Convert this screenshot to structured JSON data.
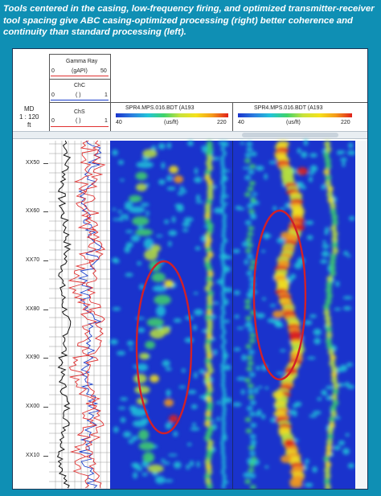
{
  "caption": "Tools centered in the casing, low-frequency firing, and optimized transmitter-receiver tool spacing give ABC casing-optimized processing (right) better coherence and continuity than standard processing (left).",
  "colors": {
    "background": "#0f8fb4",
    "gamma_curve": "#e03030",
    "chc_curve": "#1a3fcc",
    "chs_curve": "#e03030",
    "highlight_ellipse": "#d0202a",
    "image_base": "#1a33cc"
  },
  "header": {
    "md_label": "MD",
    "scale_label": "1 : 120",
    "unit_label": "ft",
    "gamma": {
      "name": "Gamma Ray",
      "unit": "(gAPI)",
      "min": "0",
      "max": "50"
    },
    "chc": {
      "name": "ChC",
      "unit": "( )",
      "min": "0",
      "max": "1"
    },
    "chs": {
      "name": "ChS",
      "unit": "( )",
      "min": "0",
      "max": "1"
    },
    "left_track": {
      "name": "SPR4.MPS.016.BDT (A193",
      "unit": "(us/ft)",
      "min": "40",
      "max": "220"
    },
    "right_track": {
      "name": "SPR4.MPS.016.BDT (A193",
      "unit": "(us/ft)",
      "min": "40",
      "max": "220"
    }
  },
  "depths": [
    "XX50",
    "XX60",
    "XX70",
    "XX80",
    "XX90",
    "XX00",
    "XX10"
  ]
}
